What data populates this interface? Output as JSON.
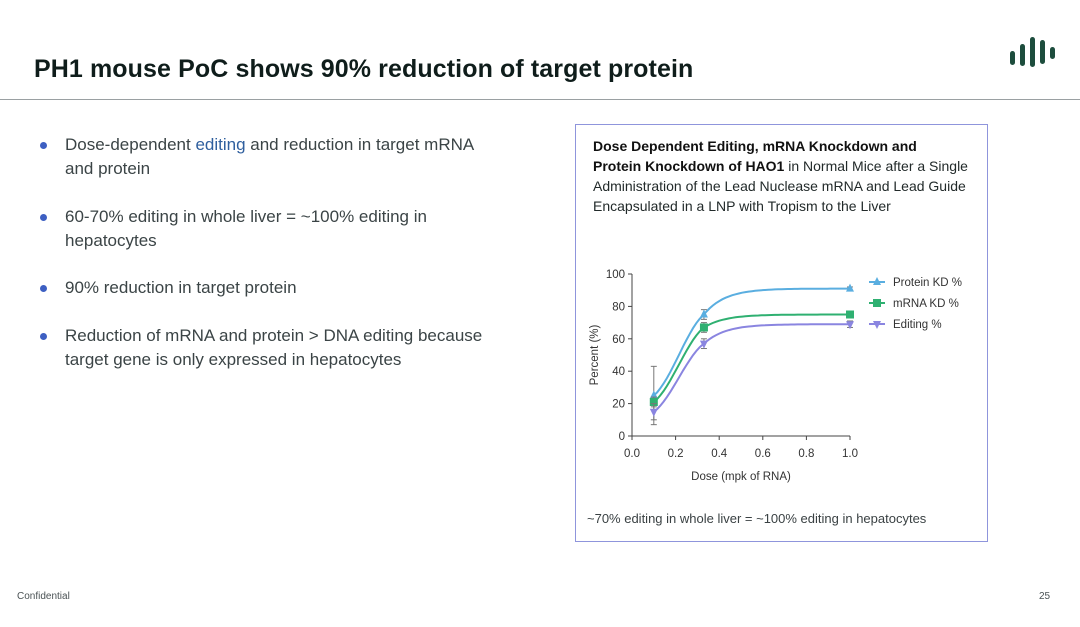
{
  "page": {
    "title": "PH1 mouse PoC shows 90% reduction of target protein",
    "footer_left": "Confidential",
    "page_number": "25",
    "brand_color": "#1d4d3d"
  },
  "bullets": [
    {
      "pre": "Dose-dependent ",
      "highlight": "editing",
      "post": " and reduction in target mRNA and protein"
    },
    {
      "text": "60-70% editing in whole liver = ~100% editing in hepatocytes"
    },
    {
      "text": "90% reduction in target protein"
    },
    {
      "text": "Reduction of mRNA and protein > DNA editing because target gene is only expressed in hepatocytes"
    }
  ],
  "panel": {
    "caption_bold_1": "Dose Dependent Editing, mRNA Knockdown and",
    "caption_bold_2": "Protein Knockdown of HAO1",
    "caption_rest": " in Normal Mice after a Single Administration of the Lead Nuclease mRNA and Lead Guide Encapsulated in a LNP with Tropism to the Liver",
    "footnote": "~70% editing in whole liver = ~100% editing in hepatocytes"
  },
  "chart_data": {
    "type": "line",
    "xlabel": "Dose (mpk of RNA)",
    "ylabel": "Percent (%)",
    "xlim": [
      0.0,
      1.0
    ],
    "ylim": [
      0,
      100
    ],
    "xticks": [
      "0.0",
      "0.2",
      "0.4",
      "0.6",
      "0.8",
      "1.0"
    ],
    "yticks": [
      "0",
      "20",
      "40",
      "60",
      "80",
      "100"
    ],
    "x": [
      0.1,
      0.33,
      1.0
    ],
    "legend_position": "top-right",
    "series": [
      {
        "name": "Protein KD %",
        "values": [
          25,
          75,
          91
        ],
        "errors": [
          18,
          3,
          1
        ],
        "color": "#5aaee0",
        "marker": "triangle-up"
      },
      {
        "name": "mRNA KD %",
        "values": [
          21,
          67,
          75
        ],
        "errors": [
          3,
          3,
          2
        ],
        "color": "#2fb071",
        "marker": "square"
      },
      {
        "name": "Editing %",
        "values": [
          15,
          57,
          69
        ],
        "errors": [
          5,
          3,
          2
        ],
        "color": "#8a85e0",
        "marker": "triangle-down"
      }
    ]
  }
}
